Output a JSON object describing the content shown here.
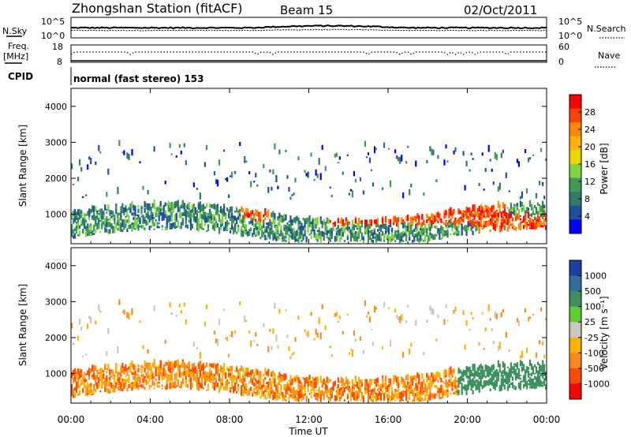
{
  "header": {
    "station": "Zhongshan Station (fitACF)",
    "beam": "Beam 15",
    "date": "02/Oct/2011"
  },
  "noise_panel": {
    "left_label": "N.Sky",
    "right_label": "N.Search",
    "left_ticks": [
      "10^5",
      "10^0"
    ],
    "right_ticks": [
      "10^5",
      "10^0"
    ]
  },
  "freq_panel": {
    "left_label_top": "Freq.",
    "left_label_unit": "[MHz]",
    "right_label": "Nave",
    "left_ticks": [
      "18",
      "8"
    ],
    "right_ticks": [
      "60",
      "0"
    ]
  },
  "cpid_panel": {
    "label": "CPID",
    "text": "normal (fast stereo) 153"
  },
  "power_panel": {
    "ylabel": "Slant Range [km]",
    "yticks": [
      "4000",
      "3000",
      "2000",
      "1000"
    ],
    "colorbar_label": "Power [dB]",
    "colorbar_ticks": [
      "28",
      "24",
      "20",
      "16",
      "12",
      "8",
      "4"
    ],
    "colors": [
      "#ff0000",
      "#ff4400",
      "#ff8a00",
      "#ffb300",
      "#e8d800",
      "#7fd540",
      "#3f9a54",
      "#2f7a6a",
      "#1f4fa0",
      "#0000ff"
    ]
  },
  "velocity_panel": {
    "ylabel": "Slant Range [km]",
    "yticks": [
      "4000",
      "3000",
      "2000",
      "1000"
    ],
    "colorbar_label": "Velocity [m s⁻¹]",
    "colorbar_ticks": [
      "1000",
      "500",
      "100",
      "25",
      "-25",
      "-100",
      "-500",
      "-1000"
    ],
    "colors": [
      "#1f3fa8",
      "#2e6fa0",
      "#3f9060",
      "#5fcf2f",
      "#c8c8c0",
      "#ffb300",
      "#ff8a1a",
      "#ff4a00",
      "#ff0000"
    ]
  },
  "xaxis": {
    "label": "Time UT",
    "ticks": [
      "00:00",
      "04:00",
      "08:00",
      "12:00",
      "16:00",
      "20:00",
      "00:00"
    ]
  },
  "chart_data": [
    {
      "type": "line",
      "title": "N.Sky / N.Search",
      "x_range_hours": [
        0,
        24
      ],
      "series": [
        {
          "name": "N.Sky",
          "style": "solid"
        },
        {
          "name": "N.Search",
          "style": "dotted"
        }
      ],
      "ylim_log10": [
        0,
        5
      ]
    },
    {
      "type": "line",
      "title": "Freq. / Nave",
      "x_range_hours": [
        0,
        24
      ],
      "series": [
        {
          "name": "Freq. [MHz]",
          "style": "solid",
          "approx_value": 8,
          "ylim": [
            8,
            18
          ]
        },
        {
          "name": "Nave",
          "style": "dotted",
          "approx_value": 30,
          "ylim": [
            0,
            60
          ]
        }
      ]
    },
    {
      "type": "heatmap",
      "title": "Power",
      "x_range_hours": [
        0,
        24
      ],
      "ylim": [
        180,
        4500
      ],
      "zlabel": "Power [dB]",
      "zlim": [
        0,
        30
      ],
      "description_tracks": [
        {
          "start": 0,
          "end": 24,
          "mid_range": 700,
          "spread": 250,
          "value": 14
        },
        {
          "start": 8.5,
          "end": 10,
          "mid_range": 1050,
          "spread": 280,
          "value": 26
        },
        {
          "start": 13,
          "end": 22,
          "mid_range": 950,
          "spread": 300,
          "value": 26
        },
        {
          "start": 20.5,
          "end": 24,
          "mid_range": 700,
          "spread": 200,
          "value": 26
        }
      ]
    },
    {
      "type": "heatmap",
      "title": "Velocity",
      "x_range_hours": [
        0,
        24
      ],
      "ylim": [
        180,
        4500
      ],
      "zlabel": "Velocity [m s⁻¹]",
      "zlim": [
        -1000,
        1000
      ]
    }
  ]
}
